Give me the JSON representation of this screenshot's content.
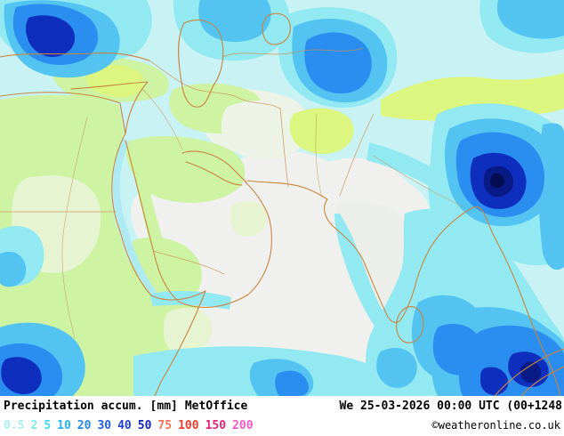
{
  "footer": {
    "title": "Precipitation accum.",
    "units": "[mm]",
    "model": "MetOffice",
    "valid": "We 25-03-2026 00:00 UTC (00+1248",
    "copyright": "©weatheronline.co.uk"
  },
  "legend": {
    "values": [
      {
        "value": "0.5",
        "color": "#a8f0f0"
      },
      {
        "value": "2",
        "color": "#7ceef0"
      },
      {
        "value": "5",
        "color": "#40d8f0"
      },
      {
        "value": "10",
        "color": "#28b2f2"
      },
      {
        "value": "20",
        "color": "#2388ee"
      },
      {
        "value": "30",
        "color": "#2160e6"
      },
      {
        "value": "40",
        "color": "#1c3ed6"
      },
      {
        "value": "50",
        "color": "#1522bb"
      },
      {
        "value": "75",
        "color": "#fa6e52"
      },
      {
        "value": "100",
        "color": "#f43b28"
      },
      {
        "value": "150",
        "color": "#e82377"
      },
      {
        "value": "200",
        "color": "#f158c5"
      }
    ]
  },
  "map": {
    "palette": {
      "ocean_trace": "#c9f2f5",
      "cyan_light": "#93e9f1",
      "blue_light": "#53c3f1",
      "blue": "#2a8df0",
      "blue_dark": "#0e2fbe",
      "blue_darkest": "#081a85",
      "no_precip": "#f0f1ee",
      "land_green": "#cdf3a3",
      "land_yellow_green": "#dcf67f",
      "coastline": "#c8853e"
    }
  }
}
